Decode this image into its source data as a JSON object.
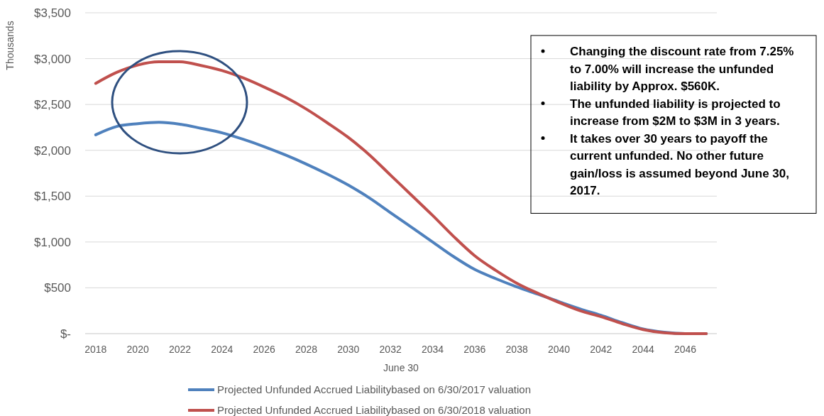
{
  "chart_data": {
    "type": "line",
    "xlabel": "June 30",
    "ylabel": "Thousands",
    "x": [
      2018,
      2019,
      2020,
      2021,
      2022,
      2023,
      2024,
      2025,
      2026,
      2027,
      2028,
      2029,
      2030,
      2031,
      2032,
      2033,
      2034,
      2035,
      2036,
      2037,
      2038,
      2039,
      2040,
      2041,
      2042,
      2043,
      2044,
      2045,
      2046,
      2047
    ],
    "series": [
      {
        "name": "Projected Unfunded Accrued Liabilitybased on 6/30/2017 valuation",
        "color": "#4f81bd",
        "values": [
          2169,
          2260,
          2290,
          2305,
          2285,
          2240,
          2190,
          2120,
          2040,
          1950,
          1850,
          1740,
          1620,
          1480,
          1320,
          1160,
          1000,
          840,
          700,
          600,
          510,
          430,
          350,
          270,
          200,
          120,
          50,
          15,
          0,
          0
        ]
      },
      {
        "name": "Projected Unfunded Accrued Liabilitybased on 6/30/2018 valuation",
        "color": "#c0504d",
        "values": [
          2730,
          2850,
          2930,
          2965,
          2965,
          2925,
          2870,
          2790,
          2690,
          2580,
          2450,
          2300,
          2140,
          1950,
          1730,
          1510,
          1290,
          1060,
          850,
          690,
          550,
          440,
          340,
          250,
          185,
          110,
          45,
          10,
          0,
          0
        ]
      }
    ],
    "xlim": [
      2017.5,
      2047.5
    ],
    "xticks": [
      2018,
      2020,
      2022,
      2024,
      2026,
      2028,
      2030,
      2032,
      2034,
      2036,
      2038,
      2040,
      2042,
      2044,
      2046
    ],
    "ylim": [
      0,
      3500
    ],
    "yticks": [
      {
        "value": 0,
        "label": "$-"
      },
      {
        "value": 500,
        "label": "$500"
      },
      {
        "value": 1000,
        "label": "$1,000"
      },
      {
        "value": 1500,
        "label": "$1,500"
      },
      {
        "value": 2000,
        "label": "$2,000"
      },
      {
        "value": 2500,
        "label": "$2,500"
      },
      {
        "value": 3000,
        "label": "$3,000"
      },
      {
        "value": 3500,
        "label": "$3,500"
      }
    ],
    "grid": "y",
    "legend": "bottom",
    "marker": "none",
    "line_style": "solid",
    "annotations": [
      "Changing the discount rate from 7.25% to 7.00% will increase the unfunded liability by Approx. $560K.",
      "The unfunded liability is projected to increase from $2M to $3M in 3 years.",
      "It takes over 30 years to payoff the current unfunded. No other future gain/loss is assumed beyond June 30, 2017."
    ]
  }
}
